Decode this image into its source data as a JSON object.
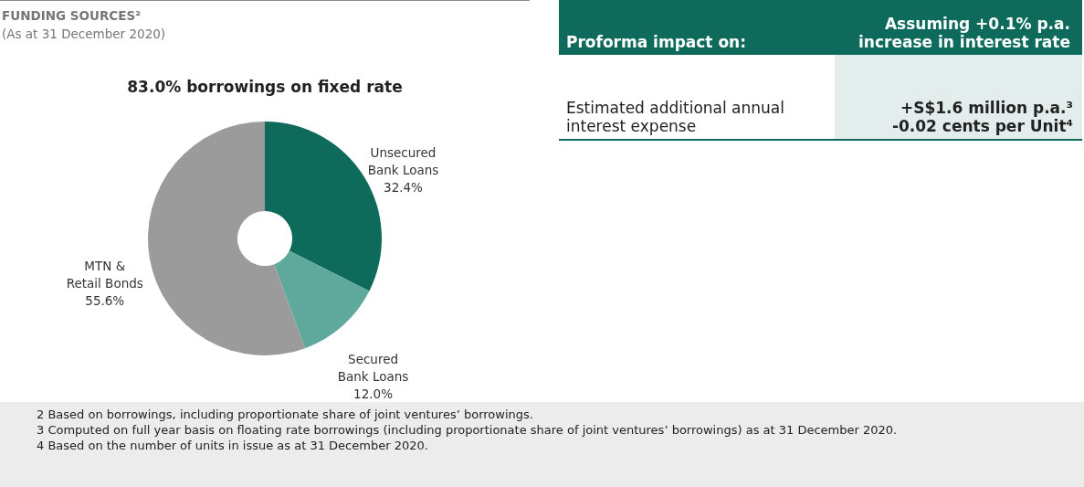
{
  "chart_data": [
    {
      "type": "donut",
      "title": "FUNDING SOURCES²",
      "subtitle": "(As at 31 December 2020)",
      "categories": [
        "Unsecured Bank Loans",
        "Secured Bank Loans",
        "MTN & Retail Bonds"
      ],
      "values": [
        32.4,
        12.0,
        55.6
      ],
      "colors": [
        "#0e6b5c",
        "#5fa89c",
        "#9b9b9b"
      ],
      "value_labels": [
        "32.4%",
        "12.0%",
        "55.6%"
      ],
      "annotations": [
        "83.0% borrowings on fixed rate",
        "2  Based on borrowings, including proportionate share of joint ventures’ borrowings.",
        "3  Computed on full year basis on floating rate borrowings (including proportionate share of joint ventures’ borrowings) as at 31 December 2020.",
        "4  Based on the number of units in issue as at 31 December 2020."
      ]
    },
    {
      "type": "other",
      "title": "Proforma impact on:",
      "annotations": [
        "Assuming +0.1% p.a. increase in interest rate",
        "Estimated additional annual interest expense",
        "+S$1.6 million p.a.³",
        "-0.02 cents per Unit⁴"
      ]
    }
  ]
}
